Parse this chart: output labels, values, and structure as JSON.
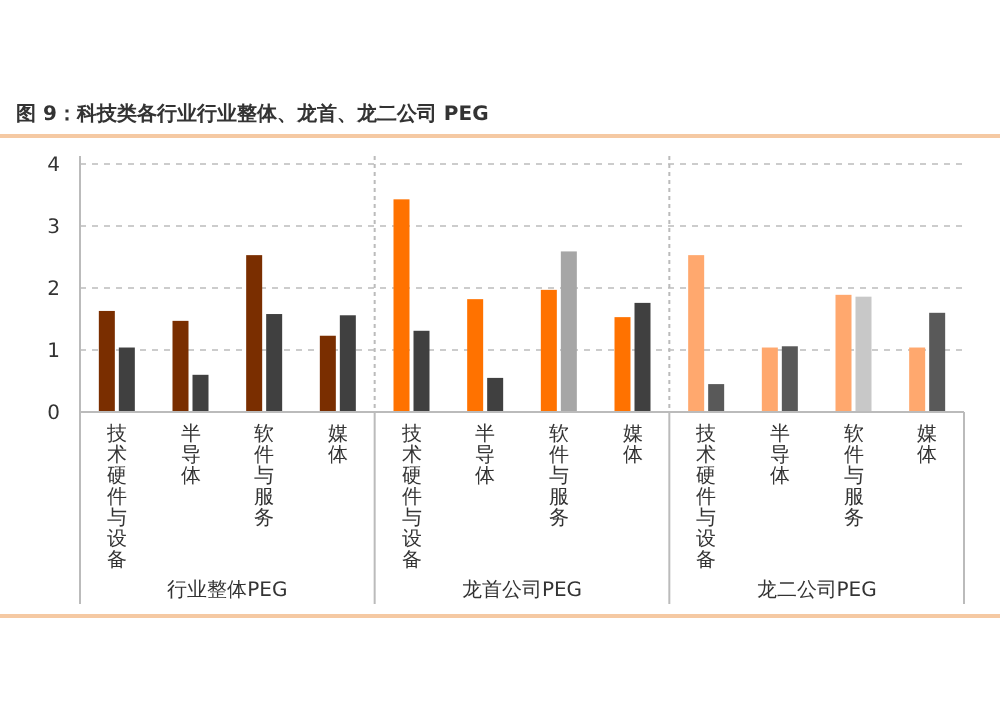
{
  "chart_data": {
    "type": "bar",
    "title": "图 9：科技类各行业行业整体、龙首、龙二公司 PEG",
    "categories": [
      "技术硬件与设备",
      "半导体",
      "软件与服务",
      "媒体",
      "技术硬件与设备",
      "半导体",
      "软件与服务",
      "媒体",
      "技术硬件与设备",
      "半导体",
      "软件与服务",
      "媒体"
    ],
    "annotations": [
      "行业整体PEG",
      "龙首公司PEG",
      "龙二公司PEG"
    ],
    "series": [
      {
        "colors": [
          "#7a2e00",
          "#7a2e00",
          "#7a2e00",
          "#7a2e00",
          "#ff7200",
          "#ff7200",
          "#ff7200",
          "#ff7200",
          "#ffa86e",
          "#ffa86e",
          "#ffa86e",
          "#ffa86e"
        ],
        "values": [
          1.63,
          1.47,
          2.53,
          1.23,
          3.43,
          1.82,
          1.97,
          1.53,
          2.53,
          1.04,
          1.89,
          1.04
        ]
      },
      {
        "colors": [
          "#404040",
          "#404040",
          "#404040",
          "#404040",
          "#404040",
          "#404040",
          "#a6a6a6",
          "#404040",
          "#595959",
          "#595959",
          "#c8c8c8",
          "#595959"
        ],
        "values": [
          1.04,
          0.6,
          1.58,
          1.56,
          1.31,
          0.55,
          2.59,
          1.76,
          0.45,
          1.06,
          1.86,
          1.6
        ]
      }
    ],
    "ylim": [
      0,
      4
    ],
    "yticks": [
      0,
      1,
      2,
      3,
      4
    ],
    "grid": "y"
  }
}
